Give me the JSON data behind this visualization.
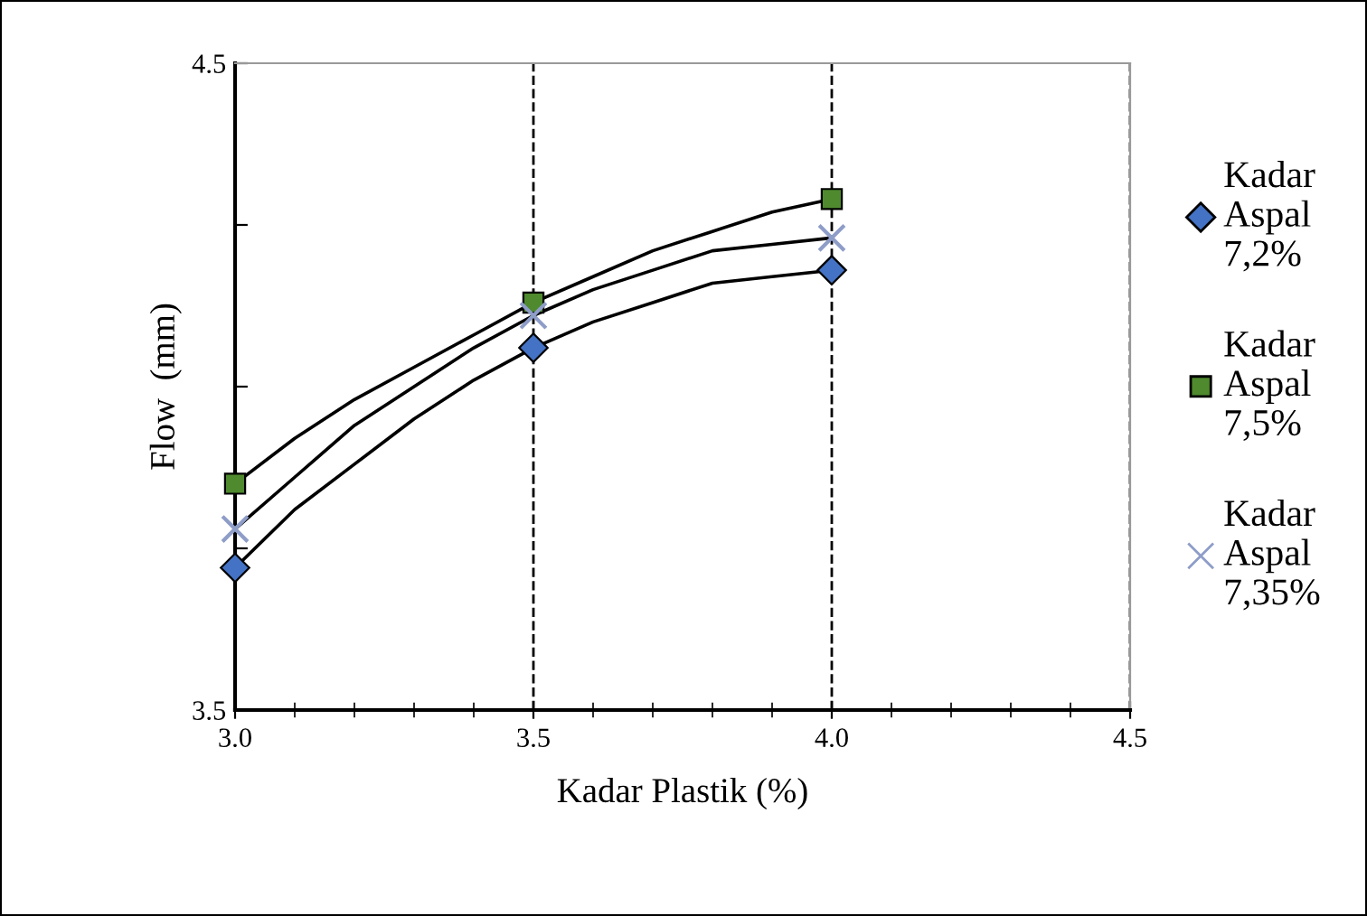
{
  "chart_data": {
    "type": "scatter",
    "xlabel": "Kadar Plastik (%)",
    "ylabel": "Flow  (mm)",
    "x": [
      3.0,
      3.5,
      4.0
    ],
    "series": [
      {
        "name": "Kadar Aspal 7,2%",
        "color": "#4472c4",
        "marker": "diamond",
        "values": [
          3.72,
          4.06,
          4.18
        ]
      },
      {
        "name": "Kadar Aspal 7,5%",
        "color": "#4f8a2e",
        "marker": "square",
        "values": [
          3.85,
          4.13,
          4.29
        ]
      },
      {
        "name": "Kadar Aspal 7,35%",
        "color": "#8e9dc8",
        "marker": "cross",
        "values": [
          3.78,
          4.11,
          4.23
        ]
      },
      {
        "type": "line",
        "color": "#000000",
        "marker": "none",
        "x": [
          3.0,
          3.1,
          3.2,
          3.3,
          3.4,
          3.5,
          3.6,
          3.7,
          3.8,
          3.9,
          4.0
        ],
        "values": [
          3.72,
          3.81,
          3.88,
          3.95,
          4.01,
          4.06,
          4.1,
          4.13,
          4.16,
          4.17,
          4.18
        ]
      },
      {
        "type": "line",
        "color": "#000000",
        "marker": "none",
        "x": [
          3.0,
          3.1,
          3.2,
          3.3,
          3.4,
          3.5,
          3.6,
          3.7,
          3.8,
          3.9,
          4.0
        ],
        "values": [
          3.85,
          3.92,
          3.98,
          4.03,
          4.08,
          4.13,
          4.17,
          4.21,
          4.24,
          4.27,
          4.29
        ]
      },
      {
        "type": "line",
        "color": "#000000",
        "marker": "none",
        "x": [
          3.0,
          3.1,
          3.2,
          3.3,
          3.4,
          3.5,
          3.6,
          3.7,
          3.8,
          3.9,
          4.0
        ],
        "values": [
          3.78,
          3.86,
          3.94,
          4.0,
          4.06,
          4.11,
          4.15,
          4.18,
          4.21,
          4.22,
          4.23
        ]
      }
    ],
    "xlim": [
      3.0,
      4.5
    ],
    "xticks": [
      {
        "value": 3.0,
        "label": "3.0"
      },
      3.5,
      {
        "value": 4.0,
        "label": "4.0"
      },
      4.5
    ],
    "ylim": [
      3.5,
      4.5
    ],
    "yticks": [
      3.5,
      {
        "value": 3.75,
        "label": null
      },
      {
        "value": 4.0,
        "label": null
      },
      {
        "value": 4.25,
        "label": null
      },
      4.5
    ],
    "grid": "x",
    "legend": "right",
    "line_style": "solid"
  }
}
